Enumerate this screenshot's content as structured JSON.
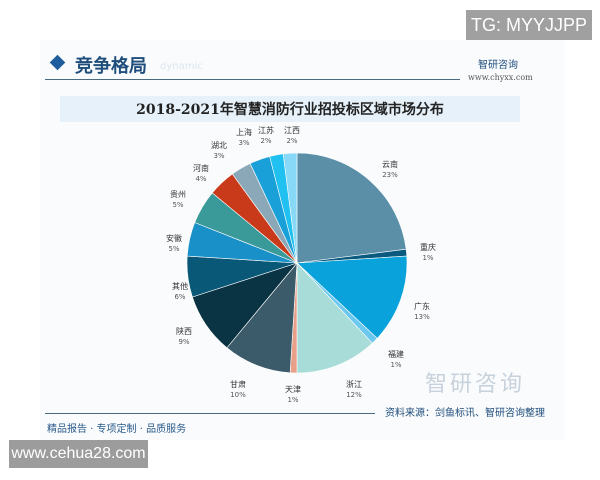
{
  "watermark_top": "TG: MYYJJPP",
  "watermark_bottom": "www.cehua28.com",
  "section": {
    "title": "竞争格局",
    "subtitle": "dynamic"
  },
  "logo": {
    "name": "智研咨询",
    "url": "www.chyxx.com"
  },
  "source": "资料来源：剑鱼标讯、智研咨询整理",
  "footer": "精品报告 · 专项定制 · 品质服务",
  "big_watermark": "智研咨询",
  "chart_data": {
    "type": "pie",
    "title": "2018-2021年智慧消防行业招投标区域市场分布",
    "start": "12 o'clock, clockwise",
    "slices": [
      {
        "label": "云南",
        "value": 23,
        "color": "#5b8fa8"
      },
      {
        "label": "重庆",
        "value": 1,
        "color": "#0a5a80"
      },
      {
        "label": "广东",
        "value": 13,
        "color": "#0aa2da"
      },
      {
        "label": "福建",
        "value": 1,
        "color": "#6cc8ee"
      },
      {
        "label": "浙江",
        "value": 12,
        "color": "#a8dcd8"
      },
      {
        "label": "天津",
        "value": 1,
        "color": "#e8a088"
      },
      {
        "label": "甘肃",
        "value": 10,
        "color": "#3b5a6a"
      },
      {
        "label": "陕西",
        "value": 9,
        "color": "#0a3444"
      },
      {
        "label": "其他",
        "value": 6,
        "color": "#0a5878"
      },
      {
        "label": "安徽",
        "value": 5,
        "color": "#1a90c8"
      },
      {
        "label": "贵州",
        "value": 5,
        "color": "#3a9a9a"
      },
      {
        "label": "河南",
        "value": 4,
        "color": "#c83a1a"
      },
      {
        "label": "湖北",
        "value": 3,
        "color": "#8aa8b8"
      },
      {
        "label": "上海",
        "value": 3,
        "color": "#1aa0d8"
      },
      {
        "label": "江苏",
        "value": 2,
        "color": "#20c0f0"
      },
      {
        "label": "江西",
        "value": 2,
        "color": "#88d8f8"
      }
    ]
  }
}
